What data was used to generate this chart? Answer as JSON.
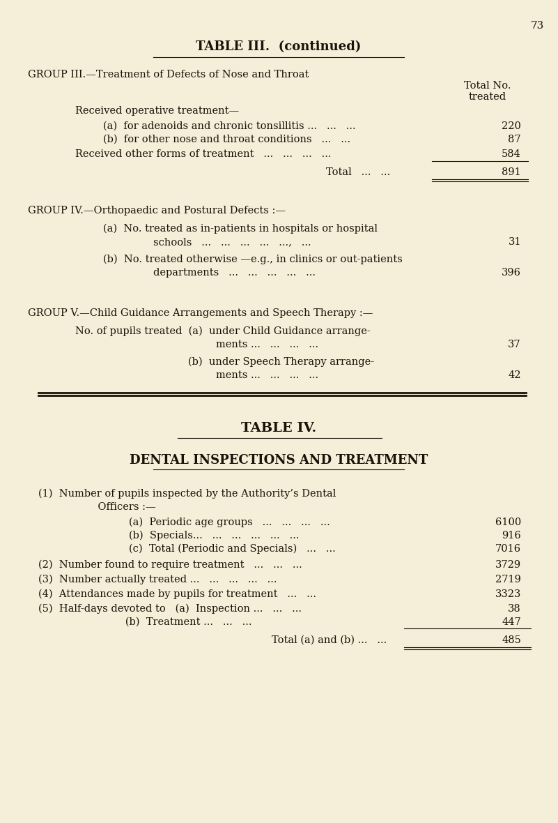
{
  "bg_color": "#f5eed8",
  "text_color": "#1a1209",
  "page_number": "73",
  "title": "TABLE III.  (continued)",
  "group3_header": "GROUP III.—Treatment of Defects of Nose and Throat",
  "col_hdr1": "Total No.",
  "col_hdr2": "treated",
  "grp3_rows": [
    {
      "indent": 0.14,
      "text": "Received operative treatment—",
      "value": null,
      "line_above": false
    },
    {
      "indent": 0.2,
      "text": "(a)  for adenoids and chronic tonsillitis ...   ...   ...",
      "value": "220",
      "line_above": false
    },
    {
      "indent": 0.2,
      "text": "(b)  for other nose and throat conditions   ...   ...",
      "value": "87",
      "line_above": false
    },
    {
      "indent": 0.14,
      "text": "Received other forms of treatment   ...   ...   ...   ...",
      "value": "584",
      "line_above": false
    }
  ],
  "grp3_total_label": "Total   ...   ...",
  "grp3_total_value": "891",
  "group4_header": "GROUP IV.—Orthopaedic and Postural Defects :—",
  "grp4a_line1": "(a)  No. treated as in-patients in hospitals or hospital",
  "grp4a_line2": "       schools   ...   ...   ...   ...   ...,   ...",
  "grp4a_value": "31",
  "grp4b_line1": "(b)  No. treated otherwise —e.g., in clinics or out-patients",
  "grp4b_line2": "       departments   ...   ...   ...   ...   ...",
  "grp4b_value": "396",
  "group5_header": "GROUP V.—Child Guidance Arrangements and Speech Therapy :—",
  "grp5_line1a": "No. of pupils treated  (a)  under Child Guidance arrange-",
  "grp5_line1b": "                              ments ...   ...   ...   ...",
  "grp5_value1": "37",
  "grp5_line2a": "                         (b)  under Speech Therapy arrange-",
  "grp5_line2b": "                              ments ...   ...   ...   ...",
  "grp5_value2": "42",
  "table4_title": "TABLE IV.",
  "table4_subtitle": "DENTAL INSPECTIONS AND TREATMENT",
  "den_1_line1": "(1)  Number of pupils inspected by the Authority’s Dental",
  "den_1_line2": "       Officers :—",
  "den_1a_text": "(a)  Periodic age groups   ...   ...   ...   ...",
  "den_1a_val": "6100",
  "den_1b_text": "(b)  Specials...   ...   ...   ...   ...   ...",
  "den_1b_val": "916",
  "den_1c_text": "(c)  Total (Periodic and Specials)   ...   ...",
  "den_1c_val": "7016",
  "den_2_text": "(2)  Number found to require treatment   ...   ...   ...",
  "den_2_val": "3729",
  "den_3_text": "(3)  Number actually treated ...   ...   ...   ...   ...",
  "den_3_val": "2719",
  "den_4_text": "(4)  Attendances made by pupils for treatment   ...   ...",
  "den_4_val": "3323",
  "den_5a_text": "(5)  Half-days devoted to   (a)  Inspection ...   ...   ...",
  "den_5a_val": "38",
  "den_5b_text": "                           (b)  Treatment ...   ...   ...",
  "den_5b_val": "447",
  "den_total_label": "Total (a) and (b) ...   ...",
  "den_total_val": "485"
}
